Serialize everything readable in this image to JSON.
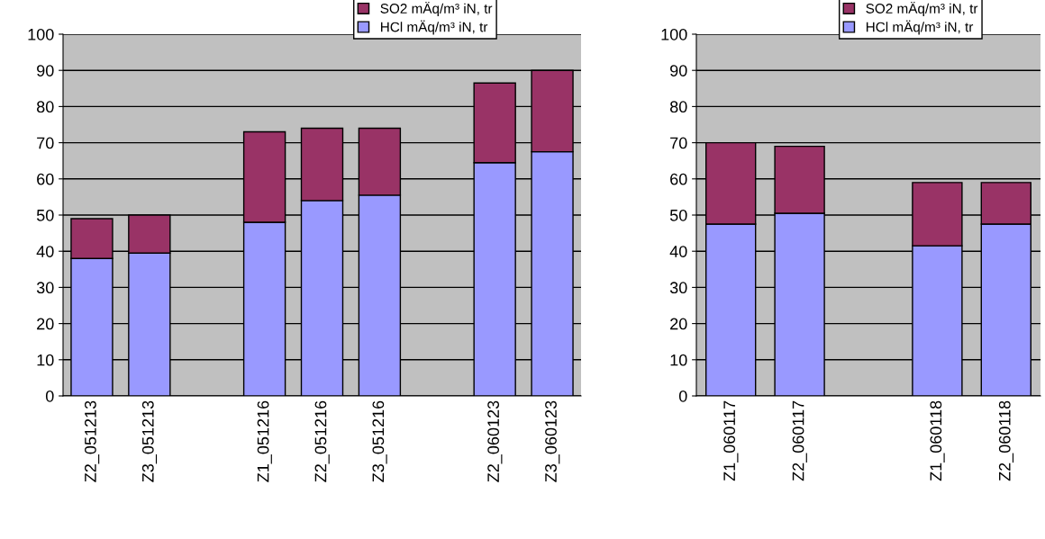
{
  "chart_data": [
    {
      "type": "bar",
      "stacked": true,
      "categories": [
        "Z2_051213",
        "Z3_051213",
        null,
        "Z1_051216",
        "Z2_051216",
        "Z3_051216",
        null,
        "Z2_060123",
        "Z3_060123"
      ],
      "series": [
        {
          "name": "HCl mÄq/m³ iN, tr",
          "color": "#9999ff",
          "values": [
            38,
            39.5,
            null,
            48,
            54,
            55.5,
            null,
            64.5,
            67.5
          ]
        },
        {
          "name": "SO2 mÄq/m³ iN, tr",
          "color": "#993366",
          "values": [
            11,
            10.5,
            null,
            25,
            20,
            18.5,
            null,
            22,
            22.5
          ]
        }
      ],
      "ylim": [
        0,
        100
      ],
      "yticks": [
        0,
        10,
        20,
        30,
        40,
        50,
        60,
        70,
        80,
        90,
        100
      ],
      "grid": "y",
      "legend": "top right"
    },
    {
      "type": "bar",
      "stacked": true,
      "categories": [
        "Z1_060117",
        "Z2_060117",
        null,
        "Z1_060118",
        "Z2_060118"
      ],
      "series": [
        {
          "name": "HCl mÄq/m³ iN, tr",
          "color": "#9999ff",
          "values": [
            47.5,
            50.5,
            null,
            41.5,
            47.5
          ]
        },
        {
          "name": "SO2 mÄq/m³ iN, tr",
          "color": "#993366",
          "values": [
            22.5,
            18.5,
            null,
            17.5,
            11.5
          ]
        }
      ],
      "ylim": [
        0,
        100
      ],
      "yticks": [
        0,
        10,
        20,
        30,
        40,
        50,
        60,
        70,
        80,
        90,
        100
      ],
      "grid": "y",
      "legend": "top right"
    }
  ]
}
